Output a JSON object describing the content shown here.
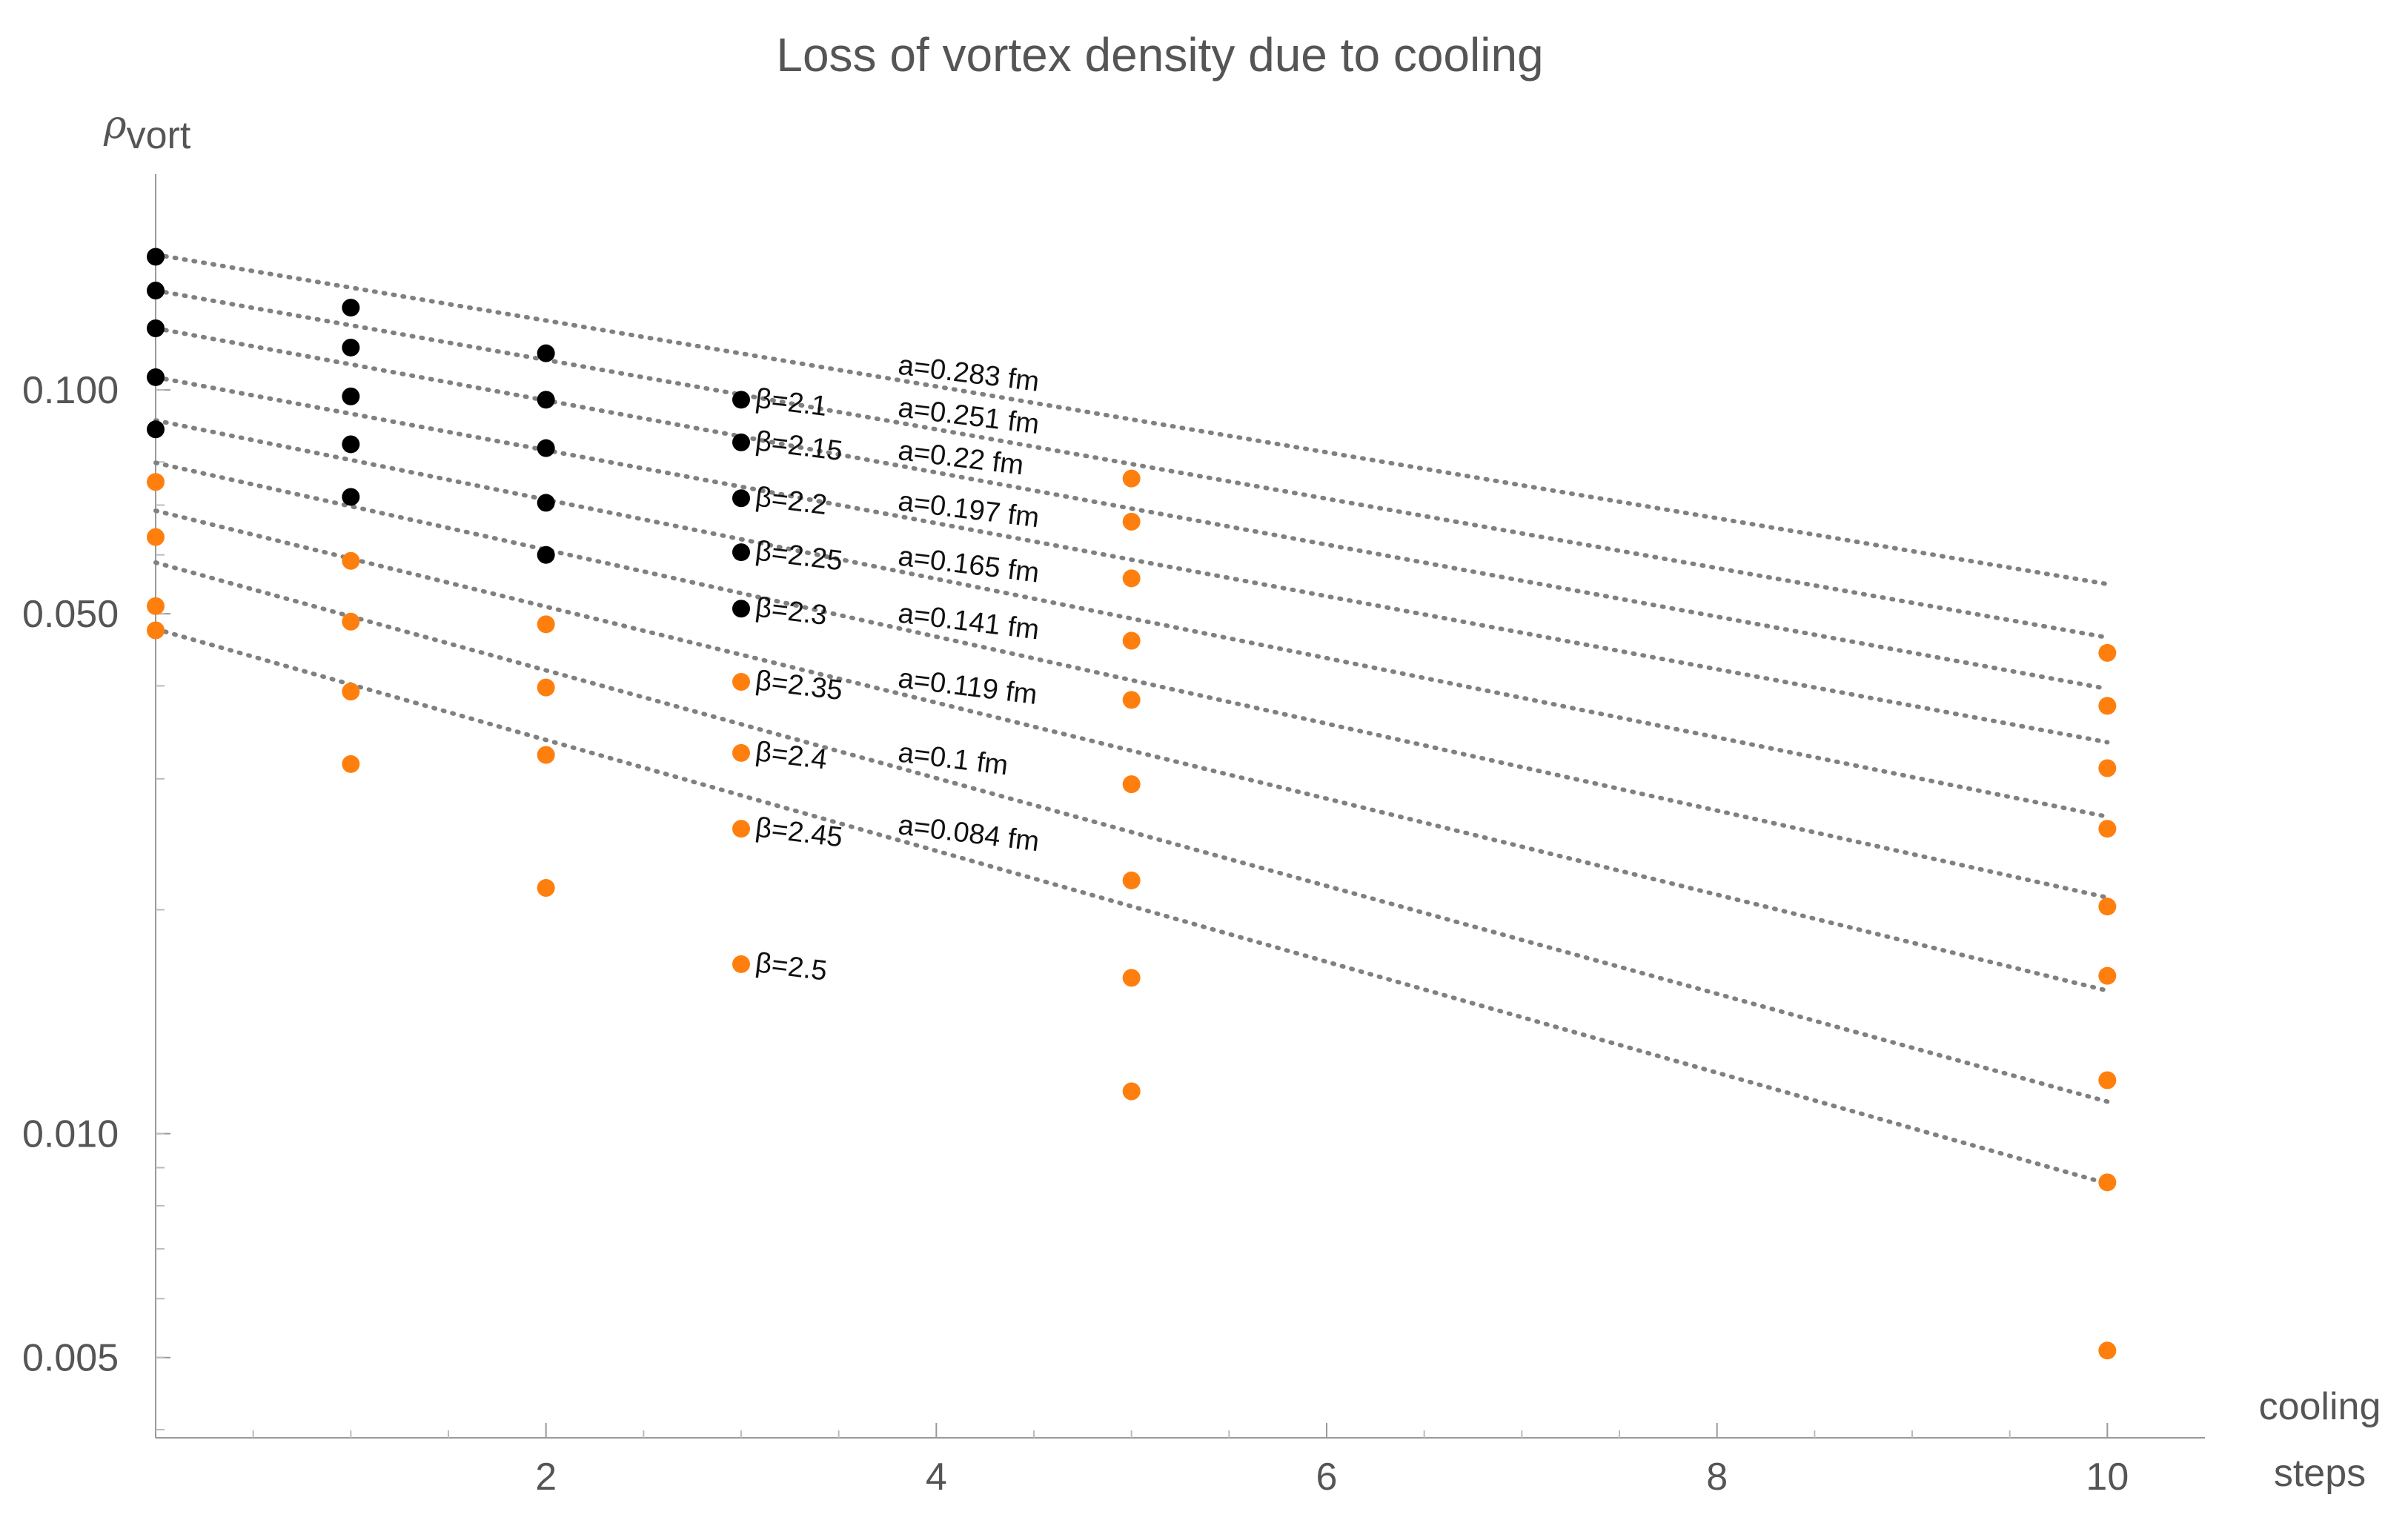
{
  "chart_data": {
    "type": "scatter",
    "title": "Loss of vortex density due to cooling",
    "ylabel": {
      "symbol": "ρ",
      "subscript": "vort"
    },
    "xlabel": [
      "cooling",
      "steps"
    ],
    "y_scale": "log",
    "xlim": [
      0,
      10.5
    ],
    "ylim": [
      0.0039,
      0.195
    ],
    "x_ticks": [
      {
        "value": 2,
        "label": "2"
      },
      {
        "value": 4,
        "label": "4"
      },
      {
        "value": 6,
        "label": "6"
      },
      {
        "value": 8,
        "label": "8"
      },
      {
        "value": 10,
        "label": "10"
      }
    ],
    "y_ticks": [
      {
        "value": 0.1,
        "label": "0.100"
      },
      {
        "value": 0.05,
        "label": "0.050"
      },
      {
        "value": 0.01,
        "label": "0.010"
      },
      {
        "value": 0.005,
        "label": "0.005"
      }
    ],
    "fit_line_color": "#808080",
    "series": [
      {
        "beta_label": "β=2.1",
        "a_label": "a=0.283 fm",
        "fit": {
          "c": 0.152,
          "k": 0.102
        },
        "points": [
          {
            "x": 0,
            "y": 0.151,
            "color": "#000000"
          },
          {
            "x": 1,
            "y": 0.129,
            "color": "#000000"
          },
          {
            "x": 2,
            "y": 0.112,
            "color": "#000000"
          },
          {
            "x": 3,
            "y": 0.097,
            "color": "#000000"
          },
          {
            "x": 5,
            "y": 0.076,
            "color": "#ff7f0e"
          },
          {
            "x": 10,
            "y": 0.0443,
            "color": "#ff7f0e"
          }
        ]
      },
      {
        "beta_label": "β=2.15",
        "a_label": "a=0.251 fm",
        "fit": {
          "c": 0.136,
          "k": 0.1074
        },
        "points": [
          {
            "x": 0,
            "y": 0.136,
            "color": "#000000"
          },
          {
            "x": 1,
            "y": 0.114,
            "color": "#000000"
          },
          {
            "x": 2,
            "y": 0.097,
            "color": "#000000"
          },
          {
            "x": 3,
            "y": 0.085,
            "color": "#000000"
          },
          {
            "x": 5,
            "y": 0.0665,
            "color": "#ff7f0e"
          },
          {
            "x": 10,
            "y": 0.0376,
            "color": "#ff7f0e"
          }
        ]
      },
      {
        "beta_label": "β=2.2",
        "a_label": "a=0.22 fm",
        "fit": {
          "c": 0.121,
          "k": 0.1116
        },
        "points": [
          {
            "x": 0,
            "y": 0.121,
            "color": "#000000"
          },
          {
            "x": 1,
            "y": 0.098,
            "color": "#000000"
          },
          {
            "x": 2,
            "y": 0.0835,
            "color": "#000000"
          },
          {
            "x": 3,
            "y": 0.0715,
            "color": "#000000"
          },
          {
            "x": 5,
            "y": 0.0558,
            "color": "#ff7f0e"
          },
          {
            "x": 10,
            "y": 0.031,
            "color": "#ff7f0e"
          }
        ]
      },
      {
        "beta_label": "β=2.25",
        "a_label": "a=0.197 fm",
        "fit": {
          "c": 0.104,
          "k": 0.113
        },
        "points": [
          {
            "x": 0,
            "y": 0.104,
            "color": "#000000"
          },
          {
            "x": 1,
            "y": 0.0845,
            "color": "#000000"
          },
          {
            "x": 2,
            "y": 0.0705,
            "color": "#000000"
          },
          {
            "x": 3,
            "y": 0.0605,
            "color": "#000000"
          },
          {
            "x": 5,
            "y": 0.046,
            "color": "#ff7f0e"
          },
          {
            "x": 10,
            "y": 0.0257,
            "color": "#ff7f0e"
          }
        ]
      },
      {
        "beta_label": "β=2.3",
        "a_label": "a=0.165 fm",
        "fit": {
          "c": 0.091,
          "k": 0.1227
        },
        "points": [
          {
            "x": 0,
            "y": 0.0885,
            "color": "#000000"
          },
          {
            "x": 1,
            "y": 0.0718,
            "color": "#000000"
          },
          {
            "x": 2,
            "y": 0.06,
            "color": "#000000"
          },
          {
            "x": 3,
            "y": 0.0508,
            "color": "#000000"
          },
          {
            "x": 5,
            "y": 0.0383,
            "color": "#ff7f0e"
          },
          {
            "x": 10,
            "y": 0.0202,
            "color": "#ff7f0e"
          }
        ]
      },
      {
        "beta_label": "β=2.35",
        "a_label": "a=0.141 fm",
        "fit": {
          "c": 0.0798,
          "k": 0.1346
        },
        "points": [
          {
            "x": 0,
            "y": 0.0752,
            "color": "#ff7f0e"
          },
          {
            "x": 1,
            "y": 0.0589,
            "color": "#ff7f0e"
          },
          {
            "x": 2,
            "y": 0.0484,
            "color": "#ff7f0e"
          },
          {
            "x": 3,
            "y": 0.0405,
            "color": "#ff7f0e"
          },
          {
            "x": 5,
            "y": 0.0295,
            "color": "#ff7f0e"
          },
          {
            "x": 10,
            "y": 0.0163,
            "color": "#ff7f0e"
          }
        ]
      },
      {
        "beta_label": "β=2.4",
        "a_label": "a=0.119 fm",
        "fit": {
          "c": 0.0688,
          "k": 0.1486
        },
        "points": [
          {
            "x": 0,
            "y": 0.0634,
            "color": "#ff7f0e"
          },
          {
            "x": 1,
            "y": 0.0488,
            "color": "#ff7f0e"
          },
          {
            "x": 2,
            "y": 0.0398,
            "color": "#ff7f0e"
          },
          {
            "x": 3,
            "y": 0.0325,
            "color": "#ff7f0e"
          },
          {
            "x": 5,
            "y": 0.0219,
            "color": "#ff7f0e"
          },
          {
            "x": 10,
            "y": 0.0118,
            "color": "#ff7f0e"
          }
        ]
      },
      {
        "beta_label": "β=2.45",
        "a_label": "a=0.1 fm",
        "fit": {
          "c": 0.0586,
          "k": 0.1669
        },
        "points": [
          {
            "x": 0,
            "y": 0.0512,
            "color": "#ff7f0e"
          },
          {
            "x": 1,
            "y": 0.0393,
            "color": "#ff7f0e"
          },
          {
            "x": 2,
            "y": 0.0323,
            "color": "#ff7f0e"
          },
          {
            "x": 3,
            "y": 0.0257,
            "color": "#ff7f0e"
          },
          {
            "x": 5,
            "y": 0.0162,
            "color": "#ff7f0e"
          },
          {
            "x": 10,
            "y": 0.0086,
            "color": "#ff7f0e"
          }
        ]
      },
      {
        "beta_label": "β=2.5",
        "a_label": "a=0.084 fm",
        "fit": {
          "c": 0.0477,
          "k": 0.1717
        },
        "points": [
          {
            "x": 0,
            "y": 0.0475,
            "color": "#ff7f0e"
          },
          {
            "x": 1,
            "y": 0.0314,
            "color": "#ff7f0e"
          },
          {
            "x": 2,
            "y": 0.0214,
            "color": "#ff7f0e"
          },
          {
            "x": 3,
            "y": 0.0169,
            "color": "#ff7f0e"
          },
          {
            "x": 5,
            "y": 0.0114,
            "color": "#ff7f0e"
          },
          {
            "x": 10,
            "y": 0.00511,
            "color": "#ff7f0e"
          }
        ]
      }
    ]
  }
}
